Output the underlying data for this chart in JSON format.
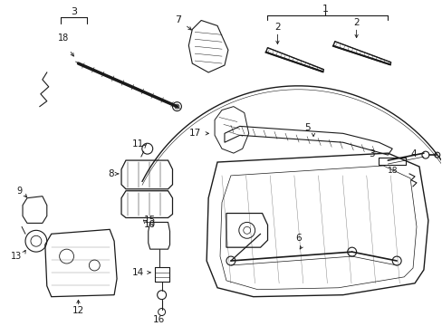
{
  "background_color": "#ffffff",
  "line_color": "#1a1a1a",
  "fig_width": 4.89,
  "fig_height": 3.6,
  "dpi": 100,
  "font_size": 7.5
}
